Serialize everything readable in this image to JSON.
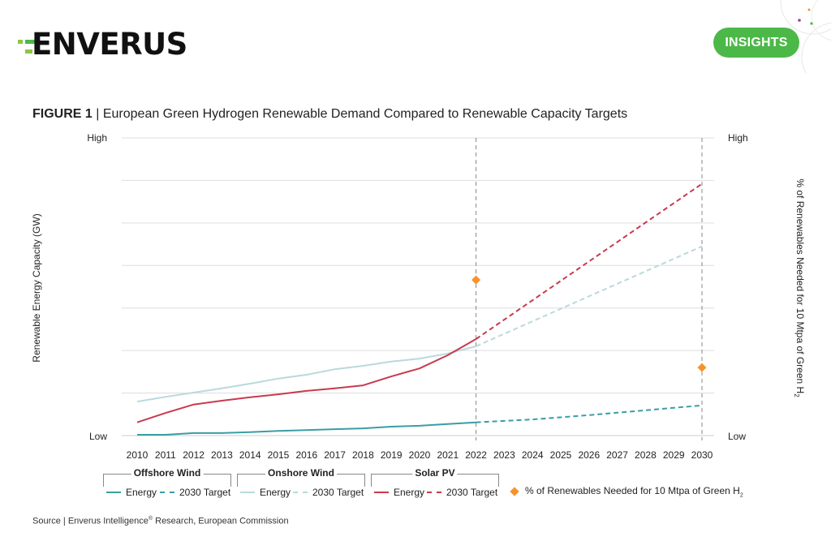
{
  "header": {
    "logo_text": "ENVERUS",
    "insights_button_label": "INSIGHTS"
  },
  "figure": {
    "number_label": "FIGURE 1",
    "separator": " | ",
    "title": "European Green Hydrogen Renewable Demand Compared to Renewable Capacity Targets"
  },
  "legend": {
    "groups": [
      {
        "title": "Offshore Wind",
        "energy_label": "Energy",
        "target_label": "2030 Target"
      },
      {
        "title": "Onshore Wind",
        "energy_label": "Energy",
        "target_label": "2030 Target"
      },
      {
        "title": "Solar PV",
        "energy_label": "Energy",
        "target_label": "2030 Target"
      }
    ],
    "marker_label_main": "% of Renewables Needed for 10 Mtpa of Green H",
    "marker_label_sub": "2"
  },
  "source": {
    "prefix": "Source | Enverus Intelligence",
    "reg": "®",
    "suffix": " Research, European Commission"
  },
  "colors": {
    "brand_green": "#4cb848",
    "offshore": "#3a9ea5",
    "onshore": "#b9d9de",
    "solar": "#c83a4e",
    "marker": "#f7922b",
    "grid": "#dddddd"
  },
  "chart_data": {
    "type": "line",
    "title": "European Green Hydrogen Renewable Demand Compared to Renewable Capacity Targets",
    "xlabel": "",
    "ylabel": "Renewable Energy Capacity (GW)",
    "y2label_main": "% of Renewables Needed for 10 Mtpa of Green H",
    "y2label_sub": "2",
    "y_tick_labels": {
      "min": "Low",
      "max": "High"
    },
    "y2_tick_labels": {
      "min": "Low",
      "max": "High"
    },
    "ylim": [
      0,
      7
    ],
    "grid": true,
    "x": [
      2010,
      2011,
      2012,
      2013,
      2014,
      2015,
      2016,
      2017,
      2018,
      2019,
      2020,
      2021,
      2022,
      2023,
      2024,
      2025,
      2026,
      2027,
      2028,
      2029,
      2030
    ],
    "reference_lines_x": [
      2022,
      2030
    ],
    "series": [
      {
        "name": "Offshore Wind - Energy",
        "style": "solid",
        "color_key": "offshore",
        "x": [
          2010,
          2011,
          2012,
          2013,
          2014,
          2015,
          2016,
          2017,
          2018,
          2019,
          2020,
          2021,
          2022
        ],
        "values": [
          0.02,
          0.02,
          0.06,
          0.06,
          0.08,
          0.11,
          0.13,
          0.15,
          0.17,
          0.21,
          0.23,
          0.27,
          0.31
        ]
      },
      {
        "name": "Offshore Wind - 2030 Target",
        "style": "dashed",
        "color_key": "offshore",
        "x": [
          2022,
          2024,
          2026,
          2030
        ],
        "values": [
          0.31,
          0.38,
          0.48,
          0.71
        ]
      },
      {
        "name": "Onshore Wind - Energy",
        "style": "solid",
        "color_key": "onshore",
        "x": [
          2010,
          2011,
          2012,
          2013,
          2014,
          2015,
          2016,
          2017,
          2018,
          2019,
          2020,
          2021,
          2022
        ],
        "values": [
          0.8,
          0.91,
          1.01,
          1.11,
          1.22,
          1.34,
          1.43,
          1.56,
          1.64,
          1.74,
          1.81,
          1.93,
          2.1
        ]
      },
      {
        "name": "Onshore Wind - 2030 Target",
        "style": "dashed",
        "color_key": "onshore",
        "x": [
          2022,
          2030
        ],
        "values": [
          2.1,
          4.45
        ]
      },
      {
        "name": "Solar PV - Energy",
        "style": "solid",
        "color_key": "solar",
        "x": [
          2010,
          2011,
          2012,
          2013,
          2014,
          2015,
          2016,
          2017,
          2018,
          2019,
          2020,
          2021,
          2022
        ],
        "values": [
          0.31,
          0.53,
          0.73,
          0.82,
          0.9,
          0.97,
          1.05,
          1.11,
          1.18,
          1.39,
          1.58,
          1.89,
          2.27
        ]
      },
      {
        "name": "Solar PV - 2030 Target",
        "style": "dashed",
        "color_key": "solar",
        "x": [
          2022,
          2030
        ],
        "values": [
          2.27,
          5.92
        ]
      }
    ],
    "markers": {
      "name": "% of Renewables Needed for 10 Mtpa of Green H2",
      "axis": "right",
      "x": [
        2022,
        2030
      ],
      "values": [
        3.66,
        1.6
      ]
    },
    "legend_position": "bottom"
  }
}
